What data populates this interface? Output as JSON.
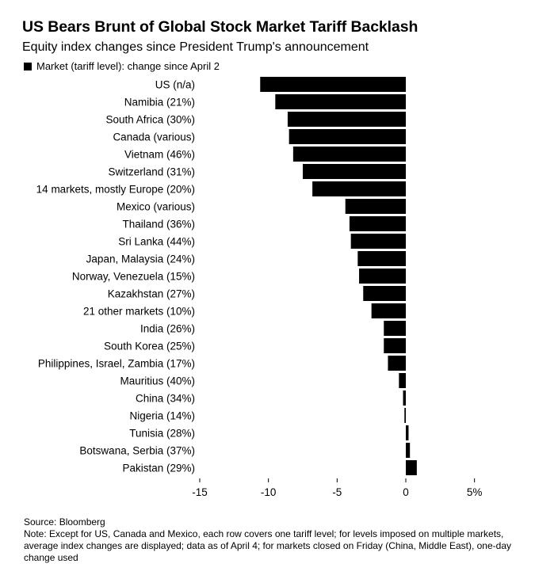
{
  "chart_data": {
    "type": "bar",
    "orientation": "horizontal",
    "title": "US Bears Brunt of Global Stock Market Tariff Backlash",
    "subtitle": "Equity index changes since President Trump's announcement",
    "legend": [
      "Market (tariff level): change since April 2"
    ],
    "categories": [
      "US (n/a)",
      "Namibia (21%)",
      "South Africa (30%)",
      "Canada (various)",
      "Vietnam (46%)",
      "Switzerland (31%)",
      "14 markets, mostly Europe (20%)",
      "Mexico (various)",
      "Thailand (36%)",
      "Sri Lanka (44%)",
      "Japan, Malaysia (24%)",
      "Norway, Venezuela (15%)",
      "Kazakhstan (27%)",
      "21 other markets (10%)",
      "India (26%)",
      "South Korea (25%)",
      "Philippines, Israel, Zambia (17%)",
      "Mauritius (40%)",
      "China (34%)",
      "Nigeria (14%)",
      "Tunisia (28%)",
      "Botswana, Serbia (37%)",
      "Pakistan (29%)"
    ],
    "values": [
      -10.6,
      -9.5,
      -8.6,
      -8.5,
      -8.2,
      -7.5,
      -6.8,
      -4.4,
      -4.1,
      -4.0,
      -3.5,
      -3.4,
      -3.1,
      -2.5,
      -1.6,
      -1.6,
      -1.3,
      -0.5,
      -0.2,
      -0.1,
      0.2,
      0.3,
      0.8
    ],
    "xlim": [
      -15,
      6
    ],
    "xticks": [
      -15,
      -10,
      -5,
      0,
      5
    ],
    "xtick_labels": [
      "-15",
      "-10",
      "-5",
      "0",
      "5%"
    ],
    "bar_color": "#000000"
  },
  "source": "Source: Bloomberg",
  "note": "Note: Except for US, Canada and Mexico, each row covers one tariff level; for levels imposed on multiple markets, average index changes are displayed; data as of April 4; for markets closed on Friday (China, Middle East), one-day change used"
}
